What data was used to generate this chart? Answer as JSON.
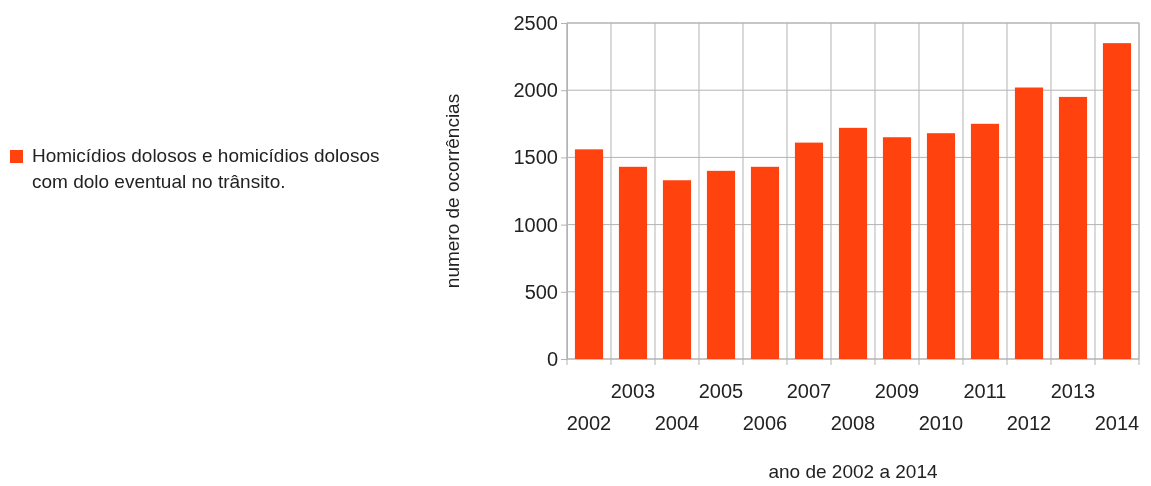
{
  "chart_data": {
    "type": "bar",
    "categories": [
      "2002",
      "2003",
      "2004",
      "2005",
      "2006",
      "2007",
      "2008",
      "2009",
      "2010",
      "2011",
      "2012",
      "2013",
      "2014"
    ],
    "series": [
      {
        "name": "Homicídios dolosos e homicídios dolosos com dolo eventual no trânsito.",
        "color": "#ff420e",
        "values": [
          1560,
          1430,
          1330,
          1400,
          1430,
          1610,
          1720,
          1650,
          1680,
          1750,
          2020,
          1950,
          2350
        ]
      }
    ],
    "xlabel": "ano de 2002 a 2014",
    "ylabel": "numero de ocorrências",
    "ylim": [
      0,
      2500
    ],
    "yticks": [
      0,
      500,
      1000,
      1500,
      2000,
      2500
    ],
    "grid": true,
    "legend": "left"
  }
}
